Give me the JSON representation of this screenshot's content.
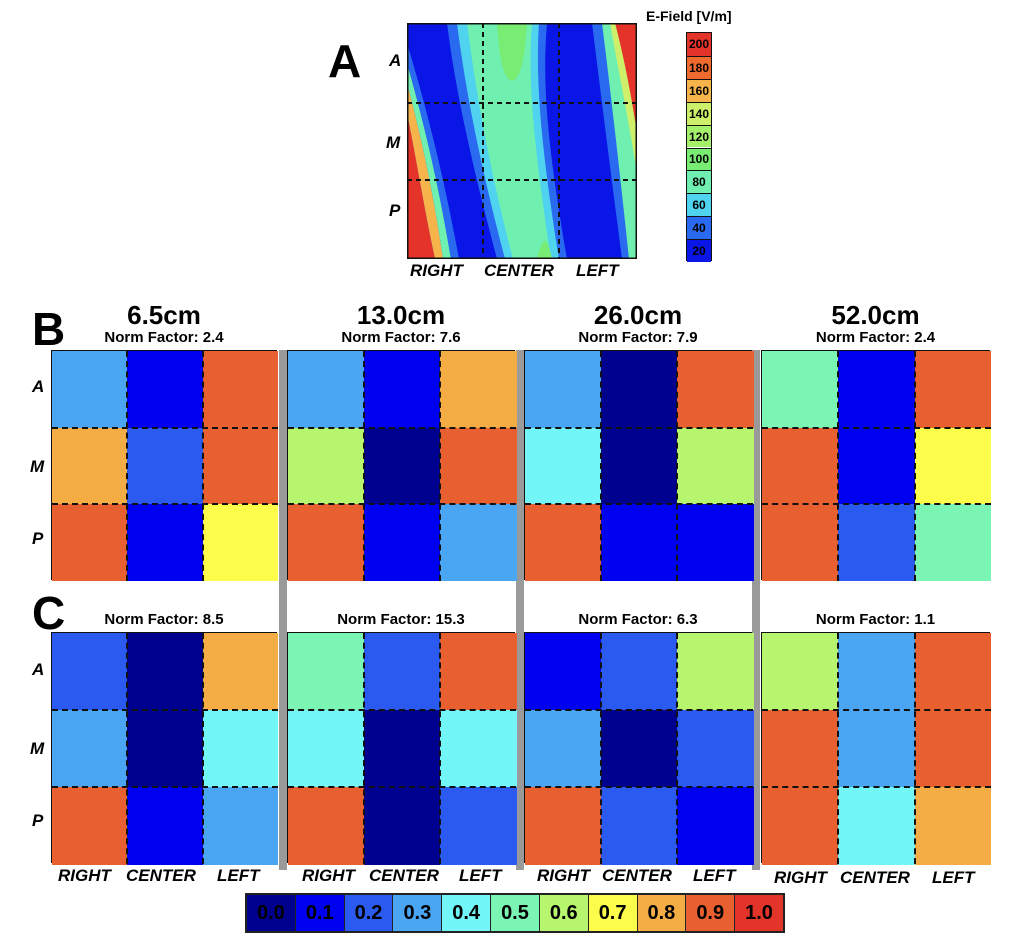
{
  "panel_labels": {
    "a": "A",
    "b": "B",
    "c": "C"
  },
  "row_labels": [
    "A",
    "M",
    "P"
  ],
  "col_labels": [
    "RIGHT",
    "CENTER",
    "LEFT"
  ],
  "efield_colorbar": {
    "title": "E-Field [V/m]",
    "ticks": [
      "200",
      "180",
      "160",
      "140",
      "120",
      "100",
      "80",
      "60",
      "40",
      "20"
    ],
    "colors": [
      "#e4342a",
      "#ef6a2e",
      "#f7b44a",
      "#cdef6a",
      "#a5f06b",
      "#78ec73",
      "#6ff0b0",
      "#4fd3ef",
      "#2a6af0",
      "#0a16e6"
    ]
  },
  "chart_data": [
    {
      "type": "heatmap",
      "panel": "A",
      "title": "",
      "legend_title": "E-Field [V/m]",
      "legend_range": [
        20,
        200
      ],
      "rows": [
        "A",
        "M",
        "P"
      ],
      "columns": [
        "RIGHT",
        "CENTER",
        "LEFT"
      ]
    },
    {
      "type": "heatmap",
      "panel": "B",
      "value_range": [
        0.0,
        1.0
      ],
      "rows": [
        "A",
        "M",
        "P"
      ],
      "columns": [
        "RIGHT",
        "CENTER",
        "LEFT"
      ],
      "subplots": [
        {
          "title": "6.5cm",
          "norm": "Norm Factor: 2.4",
          "values": [
            [
              0.3,
              0.1,
              0.9
            ],
            [
              0.8,
              0.2,
              0.9
            ],
            [
              0.9,
              0.1,
              0.7
            ]
          ]
        },
        {
          "title": "13.0cm",
          "norm": "Norm Factor: 7.6",
          "values": [
            [
              0.3,
              0.1,
              0.8
            ],
            [
              0.6,
              0.0,
              0.9
            ],
            [
              0.9,
              0.1,
              0.3
            ]
          ]
        },
        {
          "title": "26.0cm",
          "norm": "Norm Factor: 7.9",
          "values": [
            [
              0.3,
              0.0,
              0.9
            ],
            [
              0.4,
              0.0,
              0.6
            ],
            [
              0.9,
              0.1,
              0.1
            ]
          ]
        },
        {
          "title": "52.0cm",
          "norm": "Norm Factor: 2.4",
          "values": [
            [
              0.5,
              0.1,
              0.9
            ],
            [
              0.9,
              0.1,
              0.7
            ],
            [
              0.9,
              0.2,
              0.5
            ]
          ]
        }
      ]
    },
    {
      "type": "heatmap",
      "panel": "C",
      "value_range": [
        0.0,
        1.0
      ],
      "rows": [
        "A",
        "M",
        "P"
      ],
      "columns": [
        "RIGHT",
        "CENTER",
        "LEFT"
      ],
      "subplots": [
        {
          "title": "",
          "norm": "Norm Factor: 8.5",
          "values": [
            [
              0.2,
              0.0,
              0.8
            ],
            [
              0.3,
              0.0,
              0.4
            ],
            [
              0.9,
              0.1,
              0.3
            ]
          ]
        },
        {
          "title": "",
          "norm": "Norm Factor: 15.3",
          "values": [
            [
              0.5,
              0.2,
              0.9
            ],
            [
              0.4,
              0.0,
              0.4
            ],
            [
              0.9,
              0.0,
              0.2
            ]
          ]
        },
        {
          "title": "",
          "norm": "Norm Factor: 6.3",
          "values": [
            [
              0.1,
              0.2,
              0.6
            ],
            [
              0.3,
              0.0,
              0.2
            ],
            [
              0.9,
              0.2,
              0.1
            ]
          ]
        },
        {
          "title": "",
          "norm": "Norm Factor: 1.1",
          "values": [
            [
              0.6,
              0.3,
              0.9
            ],
            [
              0.9,
              0.3,
              0.9
            ],
            [
              0.9,
              0.4,
              0.8
            ]
          ]
        }
      ]
    }
  ],
  "color_legend": {
    "labels": [
      "0.0",
      "0.1",
      "0.2",
      "0.3",
      "0.4",
      "0.5",
      "0.6",
      "0.7",
      "0.8",
      "0.9",
      "1.0"
    ],
    "colors": [
      "#00008f",
      "#0000f0",
      "#2a5af0",
      "#4aa6f3",
      "#72f6f7",
      "#7af5b3",
      "#b8f56e",
      "#fcfc4a",
      "#f4ad44",
      "#e8602f",
      "#e3342a"
    ]
  }
}
